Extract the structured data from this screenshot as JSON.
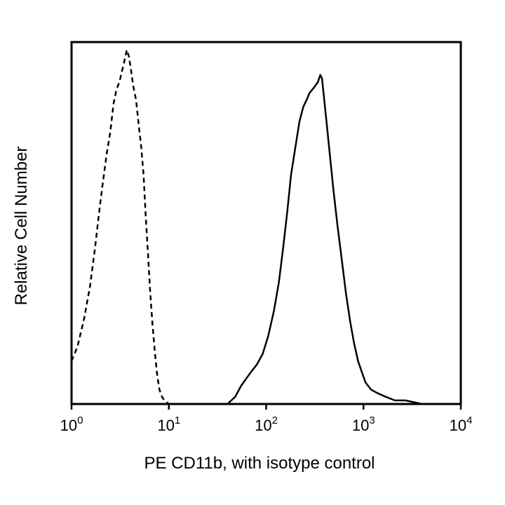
{
  "chart_data": {
    "type": "line",
    "title": "",
    "xlabel": "PE CD11b, with isotype control",
    "ylabel": "Relative Cell Number",
    "xscale": "log",
    "xlim": [
      1,
      10000
    ],
    "ylim": [
      0,
      100
    ],
    "grid": false,
    "legend": "none",
    "xticks": [
      {
        "value": 1,
        "base": "10",
        "exp": "0"
      },
      {
        "value": 10,
        "base": "10",
        "exp": "1"
      },
      {
        "value": 100,
        "base": "10",
        "exp": "2"
      },
      {
        "value": 1000,
        "base": "10",
        "exp": "3"
      },
      {
        "value": 10000,
        "base": "10",
        "exp": "4"
      }
    ],
    "series": [
      {
        "style": "dashed",
        "color": "#000000",
        "points": [
          [
            1.0,
            12
          ],
          [
            1.15,
            16
          ],
          [
            1.35,
            24
          ],
          [
            1.55,
            33
          ],
          [
            1.75,
            44
          ],
          [
            1.95,
            55
          ],
          [
            2.1,
            62
          ],
          [
            2.3,
            70
          ],
          [
            2.5,
            76
          ],
          [
            2.7,
            84
          ],
          [
            2.9,
            88
          ],
          [
            3.1,
            90
          ],
          [
            3.3,
            93
          ],
          [
            3.5,
            96
          ],
          [
            3.7,
            99
          ],
          [
            3.9,
            97
          ],
          [
            4.1,
            93
          ],
          [
            4.3,
            89
          ],
          [
            4.6,
            85
          ],
          [
            4.9,
            78
          ],
          [
            5.2,
            72
          ],
          [
            5.5,
            64
          ],
          [
            5.8,
            52
          ],
          [
            6.1,
            42
          ],
          [
            6.4,
            32
          ],
          [
            6.8,
            22
          ],
          [
            7.2,
            14
          ],
          [
            7.6,
            8
          ],
          [
            8.0,
            4
          ],
          [
            8.5,
            2
          ],
          [
            9.0,
            1
          ],
          [
            10.0,
            0
          ]
        ]
      },
      {
        "style": "solid",
        "color": "#000000",
        "points": [
          [
            40,
            0
          ],
          [
            48,
            2
          ],
          [
            55,
            5
          ],
          [
            62,
            7
          ],
          [
            70,
            9
          ],
          [
            80,
            11
          ],
          [
            92,
            14
          ],
          [
            105,
            19
          ],
          [
            120,
            26
          ],
          [
            135,
            34
          ],
          [
            150,
            44
          ],
          [
            165,
            54
          ],
          [
            180,
            64
          ],
          [
            200,
            72
          ],
          [
            220,
            79
          ],
          [
            240,
            83
          ],
          [
            260,
            85
          ],
          [
            280,
            87
          ],
          [
            300,
            88
          ],
          [
            320,
            89
          ],
          [
            340,
            90
          ],
          [
            360,
            92
          ],
          [
            375,
            91
          ],
          [
            395,
            85
          ],
          [
            420,
            78
          ],
          [
            450,
            70
          ],
          [
            490,
            60
          ],
          [
            540,
            50
          ],
          [
            600,
            40
          ],
          [
            660,
            31
          ],
          [
            730,
            23
          ],
          [
            800,
            17
          ],
          [
            880,
            12
          ],
          [
            960,
            9
          ],
          [
            1050,
            6
          ],
          [
            1200,
            4
          ],
          [
            1400,
            3
          ],
          [
            1700,
            2
          ],
          [
            2100,
            1
          ],
          [
            2700,
            1
          ],
          [
            4000,
            0
          ],
          [
            10000,
            0
          ]
        ]
      }
    ]
  }
}
